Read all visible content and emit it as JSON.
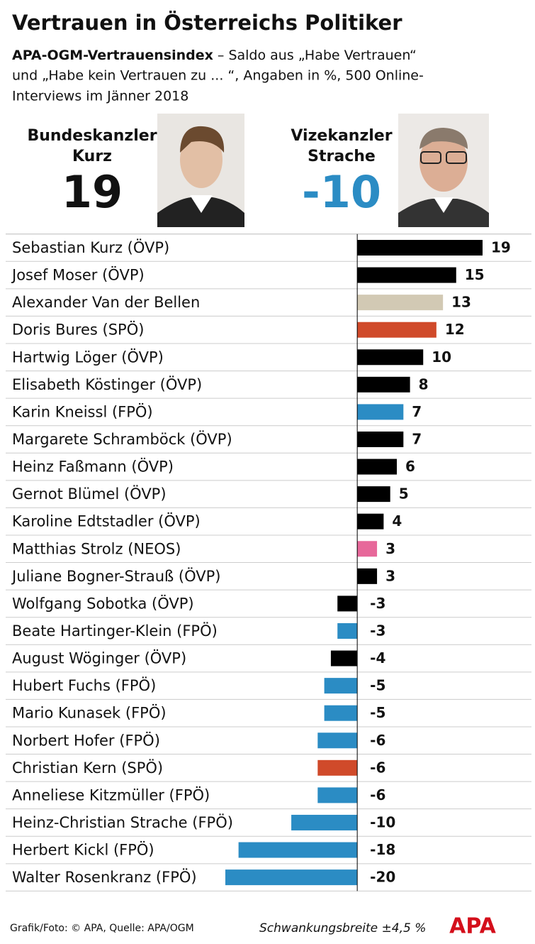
{
  "chart_data": {
    "type": "bar",
    "orientation": "horizontal",
    "title": "Vertrauen in Österreichs Politiker",
    "subtitle_bold": "APA-OGM-Vertrauensindex",
    "subtitle_lines": [
      " – Saldo aus „Habe Vertrauen“",
      "und „Habe kein Vertrauen zu ... “, Angaben in %, 500 Online-",
      "Interviews im Jänner 2018"
    ],
    "highlights": [
      {
        "label_lines": [
          "Bundeskanzler",
          "Kurz"
        ],
        "value": 19,
        "color": "#111111"
      },
      {
        "label_lines": [
          "Vizekanzler",
          "Strache"
        ],
        "value": -10,
        "color": "#2b8cc4"
      }
    ],
    "categories": [
      "Sebastian Kurz (ÖVP)",
      "Josef Moser (ÖVP)",
      "Alexander Van der Bellen",
      "Doris Bures (SPÖ)",
      "Hartwig Löger (ÖVP)",
      "Elisabeth Köstinger (ÖVP)",
      "Karin Kneissl (FPÖ)",
      "Margarete Schramböck (ÖVP)",
      "Heinz Faßmann (ÖVP)",
      "Gernot Blümel (ÖVP)",
      "Karoline Edtstadler (ÖVP)",
      "Matthias Strolz (NEOS)",
      "Juliane Bogner-Strauß (ÖVP)",
      "Wolfgang Sobotka (ÖVP)",
      "Beate Hartinger-Klein (FPÖ)",
      "August Wöginger (ÖVP)",
      "Hubert Fuchs (FPÖ)",
      "Mario Kunasek (FPÖ)",
      "Norbert Hofer (FPÖ)",
      "Christian Kern (SPÖ)",
      "Anneliese Kitzmüller (FPÖ)",
      "Heinz-Christian Strache (FPÖ)",
      "Herbert Kickl (FPÖ)",
      "Walter Rosenkranz (FPÖ)"
    ],
    "values": [
      19,
      15,
      13,
      12,
      10,
      8,
      7,
      7,
      6,
      5,
      4,
      3,
      3,
      -3,
      -3,
      -4,
      -5,
      -5,
      -6,
      -6,
      -6,
      -10,
      -18,
      -20
    ],
    "colors": [
      "#000000",
      "#000000",
      "#d2c9b4",
      "#d04a2a",
      "#000000",
      "#000000",
      "#2b8cc4",
      "#000000",
      "#000000",
      "#000000",
      "#000000",
      "#e7689a",
      "#000000",
      "#000000",
      "#2b8cc4",
      "#000000",
      "#2b8cc4",
      "#2b8cc4",
      "#2b8cc4",
      "#d04a2a",
      "#2b8cc4",
      "#2b8cc4",
      "#2b8cc4",
      "#2b8cc4"
    ],
    "xlim": [
      -20,
      19
    ],
    "footer": {
      "source": "Grafik/Foto: © APA, Quelle: APA/OGM",
      "note": "Schwankungsbreite ±4,5 %",
      "logo": "APA"
    }
  }
}
